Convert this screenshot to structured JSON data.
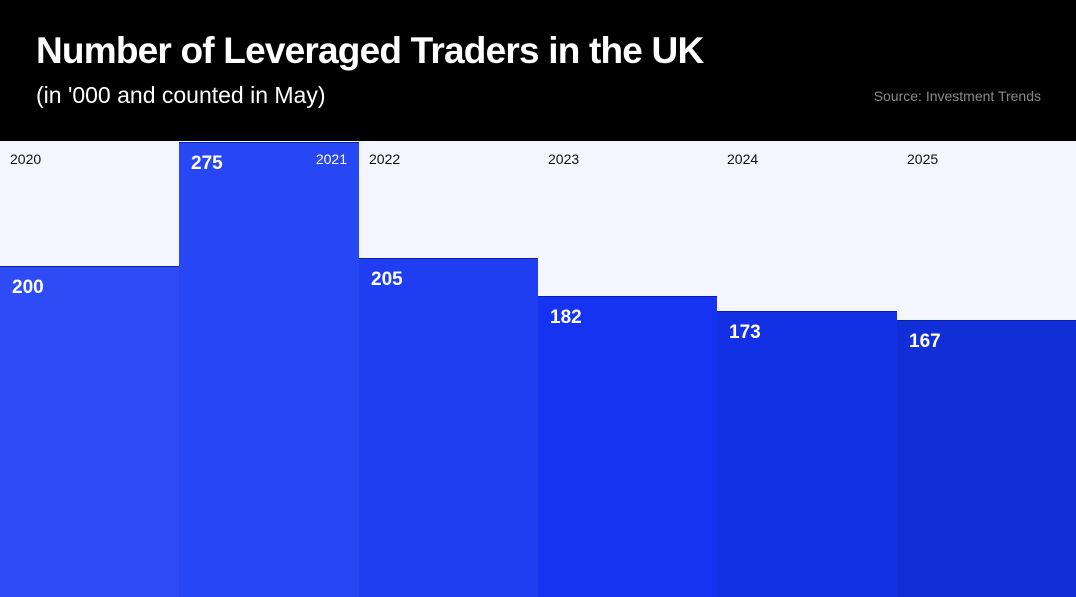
{
  "header": {
    "title": "Number of Leveraged Traders in the UK",
    "subtitle": "(in '000 and counted in May)",
    "source": "Source: Investment Trends"
  },
  "chart_data": {
    "type": "bar",
    "title": "Number of Leveraged Traders in the UK",
    "subtitle": "(in '000 and counted in May)",
    "categories": [
      "2020",
      "2021",
      "2022",
      "2023",
      "2024",
      "2025"
    ],
    "values": [
      200,
      275,
      205,
      182,
      173,
      167
    ],
    "data_labels": [
      "200",
      "275",
      "205",
      "182",
      "173",
      "167"
    ],
    "colors": [
      "#2f4bf6",
      "#2747f5",
      "#1f3ef2",
      "#1633f2",
      "#1330e4",
      "#122ed6"
    ],
    "background": "#f4f5fd",
    "grid": false,
    "legend": "none"
  }
}
